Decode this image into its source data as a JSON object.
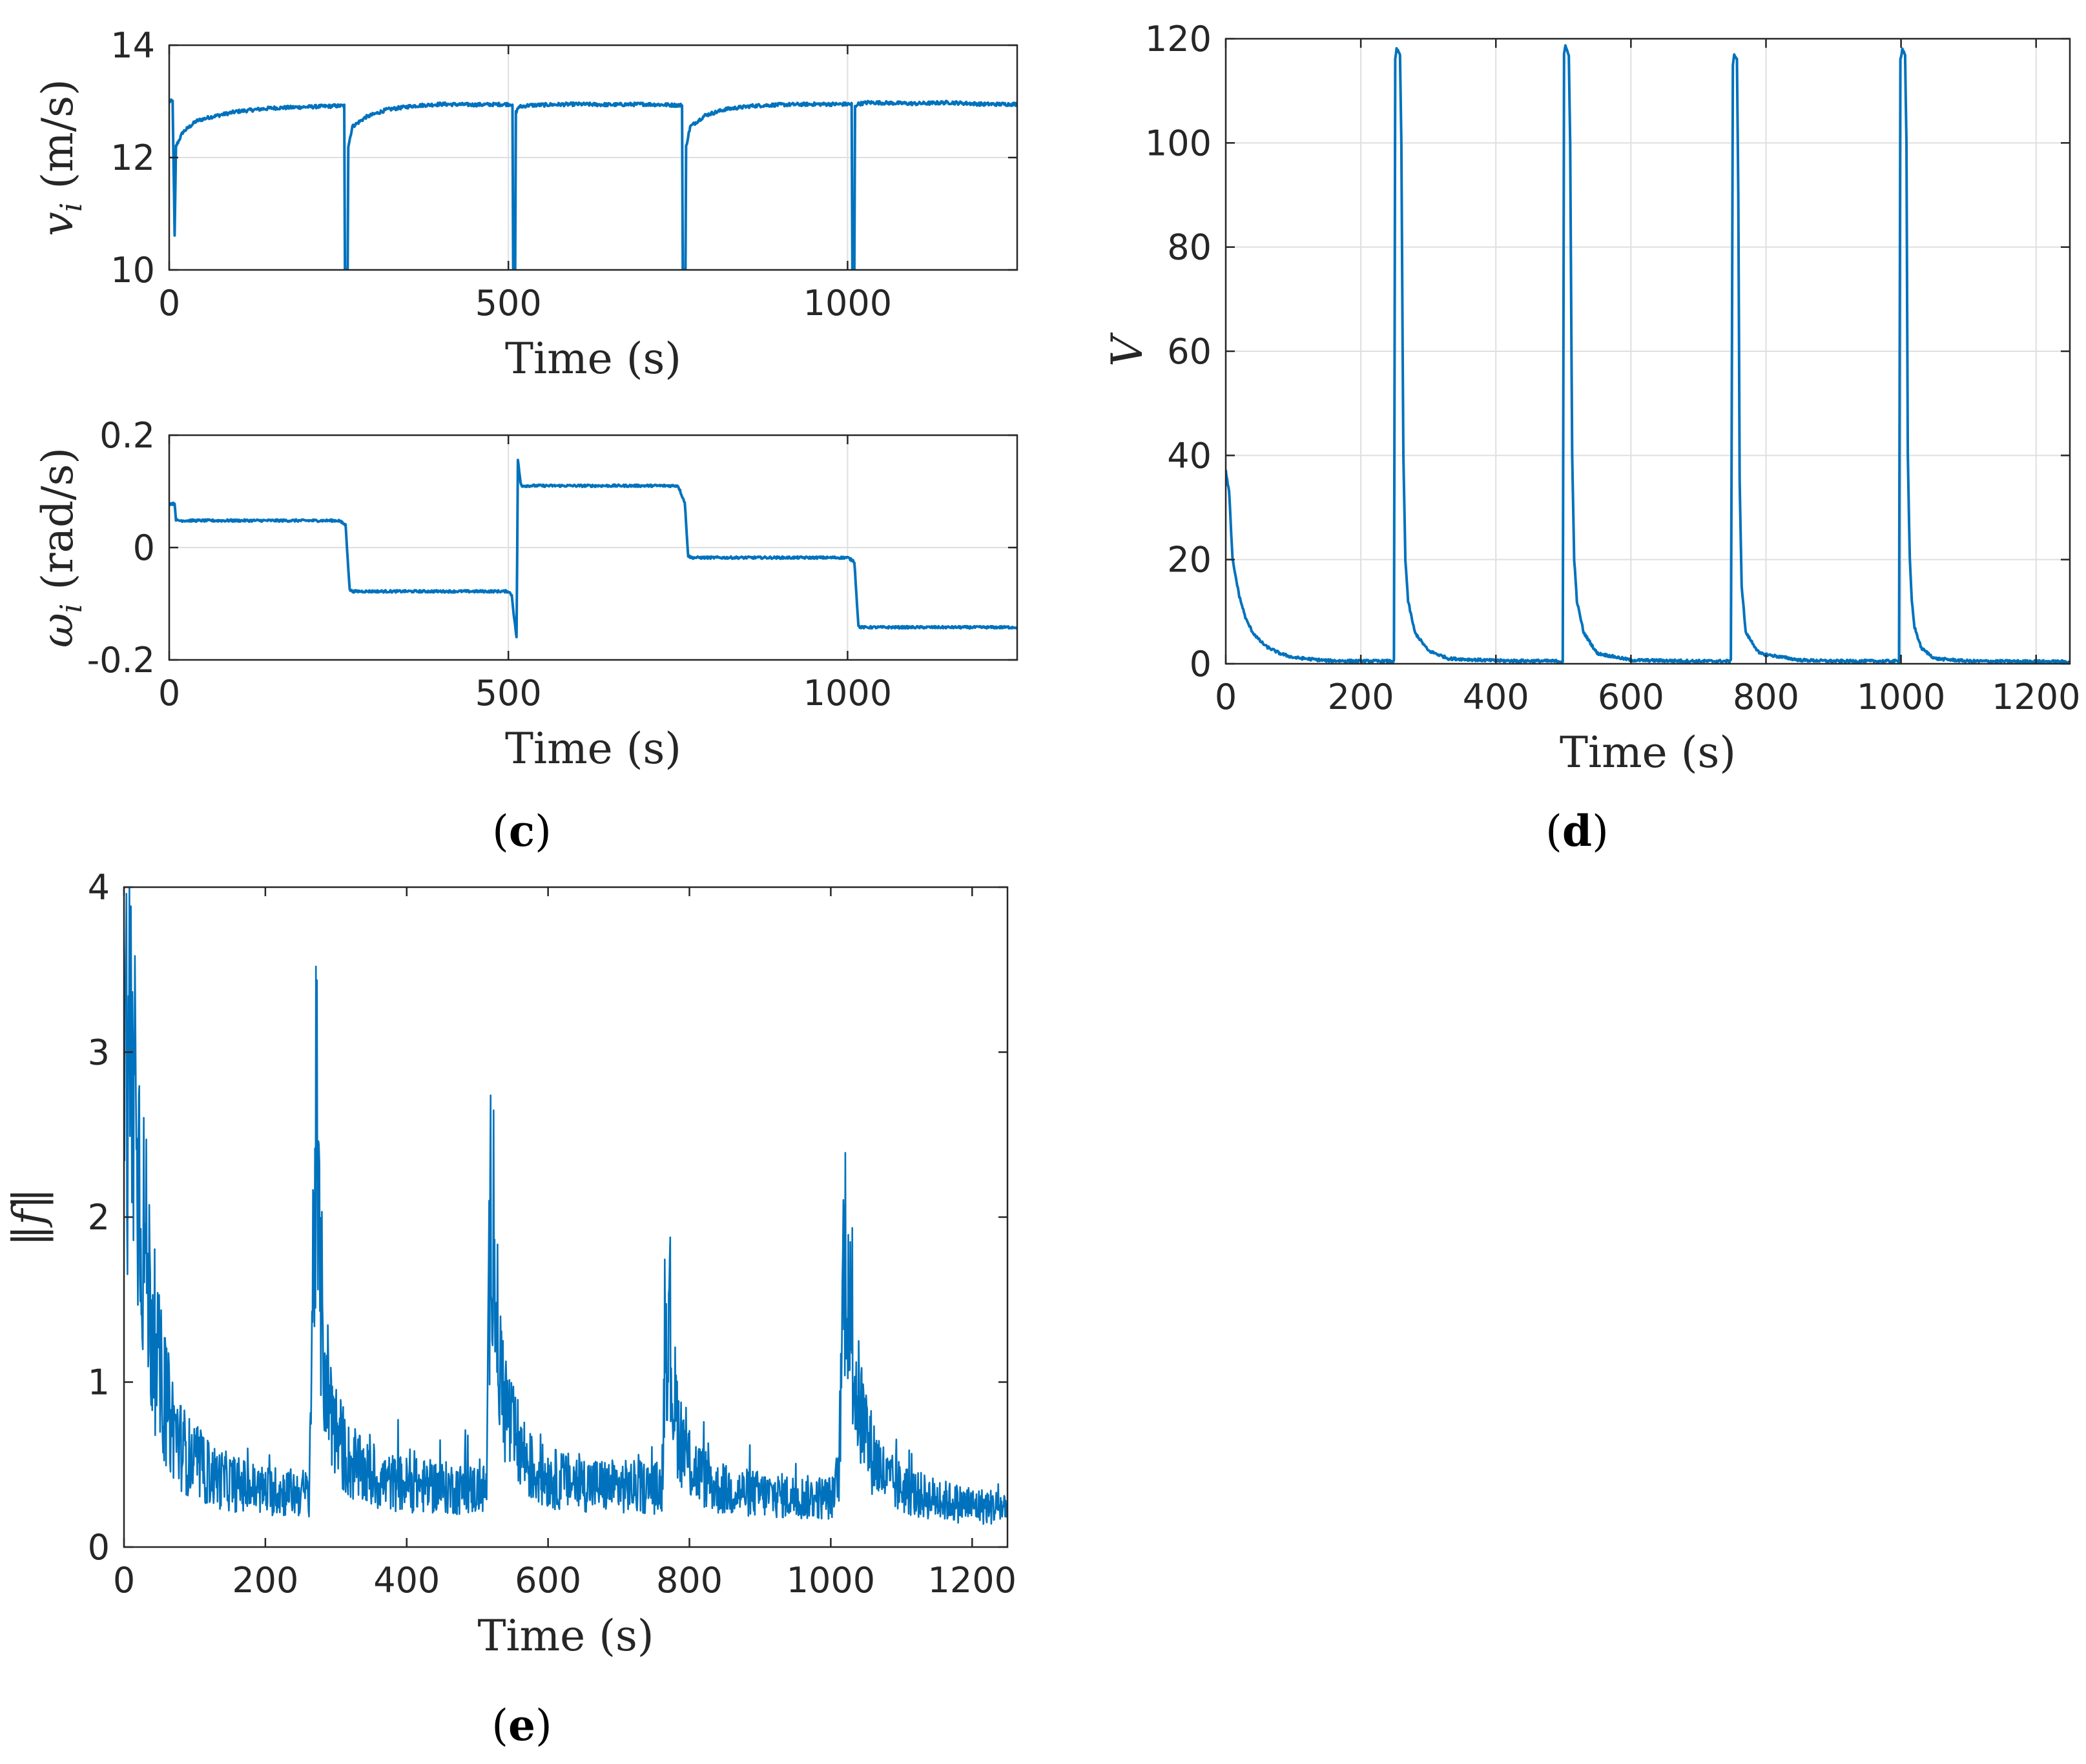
{
  "chart_data": [
    {
      "id": "c-top",
      "panel": "(c)",
      "type": "line",
      "xlabel": "Time (s)",
      "ylabel": "v_i (m/s)",
      "xlim": [
        0,
        1250
      ],
      "ylim": [
        10,
        14
      ],
      "xticks": [
        0,
        500,
        1000
      ],
      "xtick_labels": [
        "0",
        "500",
        "1000"
      ],
      "yticks": [
        10,
        12,
        14
      ],
      "ytick_labels": [
        "10",
        "12",
        "14"
      ],
      "grid": true,
      "line_color": "#0072BD",
      "series": [
        {
          "x": [
            0,
            5,
            8,
            10,
            20,
            40,
            60,
            100,
            150,
            200,
            250,
            258,
            259,
            263,
            264,
            270,
            290,
            320,
            360,
            400,
            450,
            506,
            507,
            510,
            511,
            515,
            530,
            560,
            600,
            650,
            700,
            756,
            757,
            761,
            762,
            768,
            790,
            820,
            860,
            900,
            950,
            1006,
            1007,
            1010,
            1011,
            1014,
            1030,
            1100,
            1150,
            1200,
            1250
          ],
          "y": [
            13.0,
            13.0,
            10.6,
            12.2,
            12.45,
            12.65,
            12.72,
            12.82,
            12.88,
            12.9,
            12.92,
            12.92,
            10.0,
            10.0,
            12.2,
            12.55,
            12.72,
            12.85,
            12.92,
            12.95,
            12.94,
            12.95,
            10.0,
            10.0,
            12.8,
            12.9,
            12.93,
            12.94,
            12.95,
            12.94,
            12.95,
            12.93,
            10.0,
            10.0,
            12.2,
            12.55,
            12.75,
            12.86,
            12.92,
            12.94,
            12.95,
            12.95,
            10.0,
            10.0,
            12.9,
            12.95,
            12.98,
            12.96,
            12.98,
            12.95,
            12.95
          ]
        }
      ]
    },
    {
      "id": "c-bottom",
      "type": "line",
      "xlabel": "Time (s)",
      "ylabel": "ω_i (rad/s)",
      "xlim": [
        0,
        1250
      ],
      "ylim": [
        -0.2,
        0.2
      ],
      "xticks": [
        0,
        500,
        1000
      ],
      "xtick_labels": [
        "0",
        "500",
        "1000"
      ],
      "yticks": [
        -0.2,
        0,
        0.2
      ],
      "ytick_labels": [
        "-0.2",
        "0",
        "0.2"
      ],
      "grid": true,
      "line_color": "#0072BD",
      "series": [
        {
          "x": [
            0,
            8,
            10,
            12,
            250,
            260,
            266,
            270,
            500,
            505,
            508,
            512,
            514,
            518,
            520,
            750,
            760,
            765,
            770,
            1000,
            1010,
            1016,
            1020,
            1250
          ],
          "y": [
            0.078,
            0.078,
            0.05,
            0.048,
            0.048,
            0.04,
            -0.075,
            -0.078,
            -0.078,
            -0.085,
            -0.12,
            -0.16,
            0.155,
            0.115,
            0.11,
            0.11,
            0.08,
            -0.015,
            -0.018,
            -0.018,
            -0.025,
            -0.14,
            -0.142,
            -0.142
          ]
        }
      ]
    },
    {
      "id": "d",
      "panel": "(d)",
      "type": "line",
      "xlabel": "Time (s)",
      "ylabel": "V",
      "xlim": [
        0,
        1250
      ],
      "ylim": [
        0,
        120
      ],
      "xticks": [
        0,
        200,
        400,
        600,
        800,
        1000,
        1200
      ],
      "xtick_labels": [
        "0",
        "200",
        "400",
        "600",
        "800",
        "1000",
        "1200"
      ],
      "yticks": [
        0,
        20,
        40,
        60,
        80,
        100,
        120
      ],
      "ytick_labels": [
        "0",
        "20",
        "40",
        "60",
        "80",
        "100",
        "120"
      ],
      "grid": true,
      "line_color": "#0072BD",
      "series": [
        {
          "x": [
            0,
            5,
            10,
            20,
            30,
            40,
            50,
            60,
            80,
            100,
            150,
            200,
            249,
            251,
            253,
            258,
            260,
            263,
            266,
            270,
            280,
            300,
            330,
            400,
            499,
            501,
            503,
            508,
            510,
            513,
            516,
            520,
            530,
            550,
            600,
            700,
            748,
            751,
            753,
            757,
            759,
            761,
            764,
            770,
            790,
            850,
            900,
            997,
            999,
            1002,
            1006,
            1008,
            1010,
            1013,
            1016,
            1020,
            1030,
            1050,
            1100,
            1250
          ],
          "y": [
            37,
            33,
            20,
            13,
            8.5,
            6,
            4.5,
            3.3,
            2,
            1.2,
            0.6,
            0.5,
            0.5,
            116,
            118,
            117,
            100,
            40,
            20,
            12,
            6,
            2.5,
            1,
            0.6,
            0.5,
            117,
            118.5,
            117,
            100,
            40,
            20,
            12,
            6,
            2,
            0.7,
            0.5,
            0.5,
            115,
            117,
            116,
            90,
            35,
            15,
            6,
            2,
            0.7,
            0.5,
            0.5,
            116,
            118,
            117,
            100,
            40,
            20,
            12,
            7,
            3,
            1,
            0.5,
            0.4
          ]
        }
      ]
    },
    {
      "id": "e",
      "panel": "(e)",
      "type": "line",
      "xlabel": "Time (s)",
      "ylabel": "‖f‖",
      "xlim": [
        0,
        1250
      ],
      "ylim": [
        0,
        4
      ],
      "xticks": [
        0,
        200,
        400,
        600,
        800,
        1000,
        1200
      ],
      "xtick_labels": [
        "0",
        "200",
        "400",
        "600",
        "800",
        "1000",
        "1200"
      ],
      "yticks": [
        0,
        1,
        2,
        3,
        4
      ],
      "ytick_labels": [
        "0",
        "1",
        "2",
        "3",
        "4"
      ],
      "grid": false,
      "line_color": "#0072BD",
      "series": [
        {
          "x": [
            0,
            5,
            10,
            15,
            20,
            30,
            40,
            50,
            60,
            80,
            100,
            130,
            160,
            200,
            240,
            262,
            268,
            272,
            276,
            285,
            300,
            320,
            360,
            420,
            480,
            513,
            518,
            522,
            527,
            535,
            550,
            580,
            620,
            680,
            740,
            761,
            766,
            770,
            775,
            785,
            800,
            840,
            900,
            960,
            1005,
            1012,
            1018,
            1022,
            1028,
            1038,
            1055,
            1080,
            1120,
            1160,
            1200,
            1250
          ],
          "y": [
            3.05,
            3.0,
            2.95,
            2.85,
            2.4,
            1.8,
            1.35,
            1.05,
            0.85,
            0.62,
            0.5,
            0.42,
            0.38,
            0.34,
            0.33,
            0.33,
            1.8,
            2.5,
            1.7,
            1.05,
            0.7,
            0.5,
            0.4,
            0.37,
            0.35,
            0.35,
            1.9,
            2.25,
            1.35,
            0.95,
            0.68,
            0.45,
            0.4,
            0.37,
            0.36,
            0.36,
            1.3,
            1.42,
            1.0,
            0.7,
            0.5,
            0.35,
            0.32,
            0.3,
            0.3,
            0.5,
            1.7,
            1.9,
            1.3,
            0.9,
            0.6,
            0.4,
            0.32,
            0.28,
            0.25,
            0.24
          ]
        }
      ]
    }
  ],
  "labels": {
    "panel_c": "(c)",
    "panel_d": "(d)",
    "panel_e": "(e)"
  }
}
